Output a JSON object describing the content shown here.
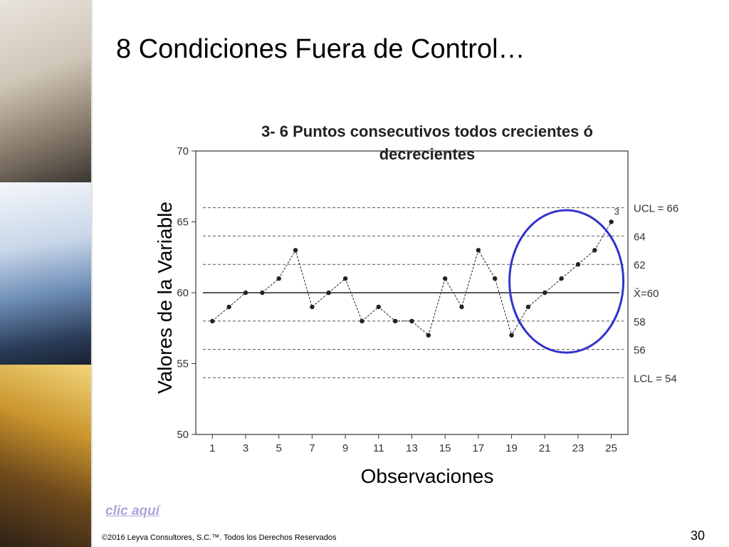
{
  "slide": {
    "title": "8 Condiciones Fuera de Control…",
    "link_text": "clic aquí",
    "footer": "©2016 Leyva Consultores, S.C.™. Todos los Derechos Reservados",
    "page_number": "30"
  },
  "chart_data": {
    "type": "line",
    "title": "3- 6 Puntos consecutivos todos crecientes ó decrecientes",
    "xlabel": "Observaciones",
    "ylabel": "Valores de la Variable",
    "xlim": [
      0,
      26
    ],
    "ylim": [
      50,
      70
    ],
    "x": [
      1,
      2,
      3,
      4,
      5,
      6,
      7,
      8,
      9,
      10,
      11,
      12,
      13,
      14,
      15,
      16,
      17,
      18,
      19,
      20,
      21,
      22,
      23,
      24,
      25
    ],
    "values": [
      58,
      59,
      60,
      60,
      61,
      63,
      59,
      60,
      61,
      58,
      59,
      58,
      58,
      57,
      61,
      59,
      63,
      61,
      57,
      59,
      60,
      61,
      62,
      63,
      65
    ],
    "x_ticks": [
      1,
      3,
      5,
      7,
      9,
      11,
      13,
      15,
      17,
      19,
      21,
      23,
      25
    ],
    "y_ticks": [
      50,
      55,
      60,
      65,
      70
    ],
    "center_line": {
      "value": 60,
      "label": "X̄=60"
    },
    "reference_lines": [
      {
        "value": 66,
        "label": "UCL = 66"
      },
      {
        "value": 64,
        "label": "64"
      },
      {
        "value": 62,
        "label": "62"
      },
      {
        "value": 58,
        "label": "58"
      },
      {
        "value": 56,
        "label": "56"
      },
      {
        "value": 54,
        "label": "LCL = 54"
      }
    ],
    "point_annotation": {
      "x": 25,
      "label": "3"
    },
    "highlight": {
      "x_center": 22.3,
      "y_center": 60.8,
      "color": "#3333cc"
    },
    "colors": {
      "series": "#222222",
      "reference": "#555555",
      "highlight": "#3333cc"
    }
  }
}
